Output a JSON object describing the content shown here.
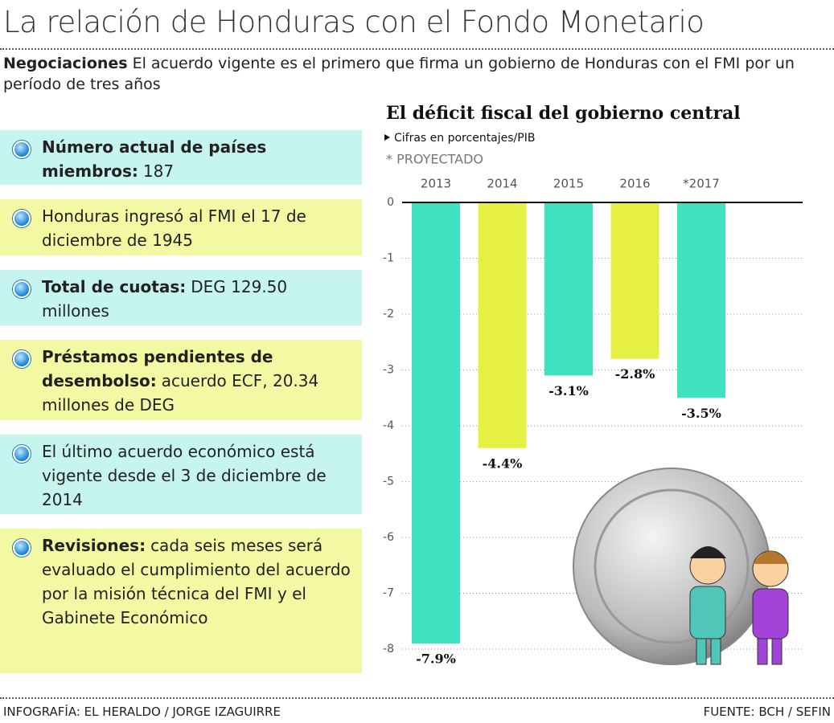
{
  "header": {
    "title": "La relación de Honduras con el Fondo Monetario",
    "lead_bold": "Negociaciones",
    "lead_text": "El acuerdo vigente es el primero que firma un gobierno de Honduras con el FMI por un período de tres años"
  },
  "facts": [
    {
      "bold": "Número actual de países miembros:",
      "text": "187"
    },
    {
      "text": "Honduras ingresó al FMI el 17 de diciembre de 1945"
    },
    {
      "bold": "Total de cuotas:",
      "text": "DEG 129.50 millones"
    },
    {
      "bold": "Préstamos pendientes de desembolso:",
      "text": "acuerdo ECF, 20.34 millones de DEG"
    },
    {
      "text": "El último acuerdo económico está vigente desde el 3 de diciembre de 2014"
    },
    {
      "bold": "Revisiones:",
      "text": "cada seis meses será evaluado el cumplimiento del acuerdo por la misión técnica del FMI y el Gabinete Económico"
    }
  ],
  "chart_data": {
    "type": "bar",
    "title": "El déficit fiscal del gobierno central",
    "subtitle": "Cifras en porcentajes/PIB",
    "note": "* PROYECTADO",
    "categories": [
      "2013",
      "2014",
      "2015",
      "2016",
      "*2017"
    ],
    "values": [
      -7.9,
      -4.4,
      -3.1,
      -2.8,
      -3.5
    ],
    "value_labels": [
      "-7.9%",
      "-4.4%",
      "-3.1%",
      "-2.8%",
      "-3.5%"
    ],
    "colors": [
      "#3fe3bf",
      "#e6f042",
      "#3fe3bf",
      "#e6f042",
      "#3fe3bf"
    ],
    "ylim": [
      -8,
      0
    ],
    "yticks": [
      0,
      -1,
      -2,
      -3,
      -4,
      -5,
      -6,
      -7,
      -8
    ],
    "grid": true
  },
  "footer": {
    "credit": "INFOGRAFÍA: EL HERALDO / JORGE IZAGUIRRE",
    "source": "FUENTE: BCH / SEFIN"
  }
}
